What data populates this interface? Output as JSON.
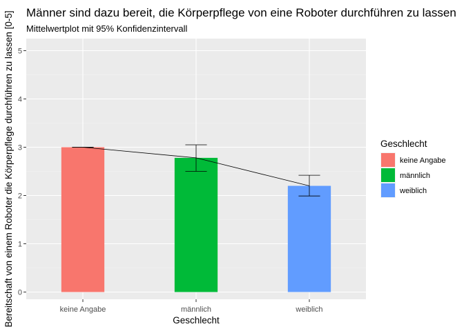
{
  "chart_data": {
    "type": "bar",
    "title": "Männer sind dazu bereit, die Körperpflege von eine Roboter durchführen zu lassen",
    "subtitle": "Mittelwertplot mit 95% Konfidenzintervall",
    "xlabel": "Geschlecht",
    "ylabel": "Bereitschaft von einem Roboter die Körperpflege durchführen zu lassen [0-5]",
    "categories": [
      "keine Angabe",
      "männlich",
      "weiblich"
    ],
    "values": [
      3.0,
      2.78,
      2.2
    ],
    "ci_lower": [
      3.0,
      2.5,
      1.99
    ],
    "ci_upper": [
      3.0,
      3.05,
      2.42
    ],
    "colors": [
      "#F8766D",
      "#00BA38",
      "#619CFF"
    ],
    "ylim": [
      -0.15,
      5.25
    ],
    "yticks": [
      0,
      1,
      2,
      3,
      4,
      5
    ],
    "grid": true,
    "mean_line": true,
    "legend": {
      "title": "Geschlecht",
      "position": "right",
      "entries": [
        "keine Angabe",
        "männlich",
        "weiblich"
      ]
    }
  }
}
